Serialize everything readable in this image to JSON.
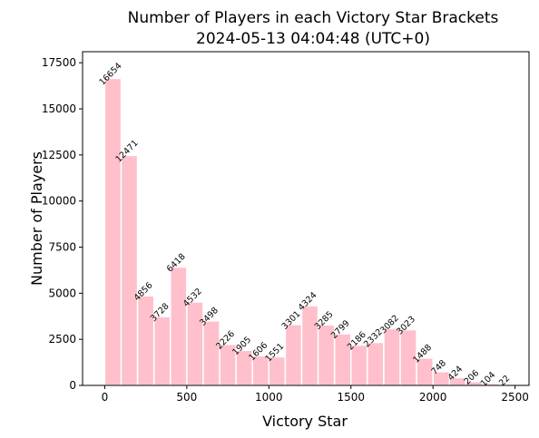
{
  "chart_data": {
    "type": "bar",
    "title_line1": "Number of Players in each Victory Star Brackets",
    "title_line2": "2024-05-13 04:04:48 (UTC+0)",
    "xlabel": "Victory Star",
    "ylabel": "Number of Players",
    "bar_color": "#ffc0cb",
    "bin_width": 100,
    "x": [
      0,
      100,
      200,
      300,
      400,
      500,
      600,
      700,
      800,
      900,
      1000,
      1100,
      1200,
      1300,
      1400,
      1500,
      1600,
      1700,
      1800,
      1900,
      2000,
      2100,
      2200,
      2300,
      2400
    ],
    "values": [
      16654,
      12471,
      4856,
      3728,
      6418,
      4532,
      3498,
      2226,
      1905,
      1606,
      1551,
      3301,
      4324,
      3285,
      2799,
      2186,
      2332,
      3082,
      3023,
      1488,
      748,
      424,
      206,
      104,
      22
    ],
    "xlim": [
      -135,
      2585
    ],
    "ylim": [
      0,
      18100
    ],
    "xticks": [
      0,
      500,
      1000,
      1500,
      2000,
      2500
    ],
    "yticks": [
      0,
      2500,
      5000,
      7500,
      10000,
      12500,
      15000,
      17500
    ],
    "grid": false
  }
}
